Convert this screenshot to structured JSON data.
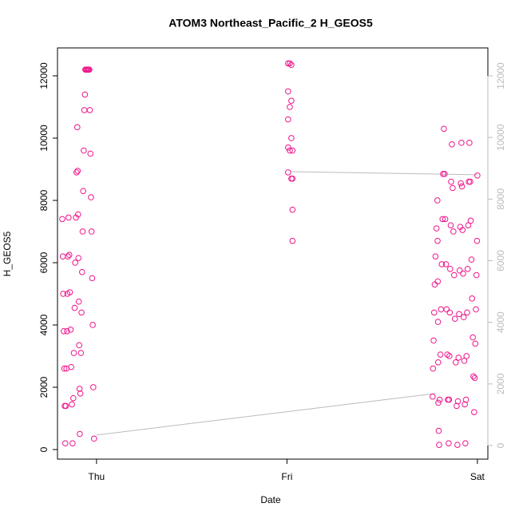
{
  "chart_data": {
    "type": "scatter",
    "title": "ATOM3 Northeast_Pacific_2 H_GEOS5",
    "xlabel": "Date",
    "ylabel": "H_GEOS5",
    "xlim": [
      -0.205,
      2.055
    ],
    "xticks": [
      {
        "value": 0,
        "label": "Thu"
      },
      {
        "value": 1,
        "label": "Fri"
      },
      {
        "value": 2,
        "label": "Sat"
      }
    ],
    "ylim": [
      -308,
      12897
    ],
    "yticks": [
      0,
      2000,
      4000,
      6000,
      8000,
      10000,
      12000
    ],
    "y2lim": [
      -441,
      12908
    ],
    "y2ticks": [
      0,
      2000,
      4000,
      6000,
      8000,
      10000,
      12000
    ],
    "series": [
      {
        "color": "#f0168c",
        "x": [
          -0.18,
          -0.177,
          -0.175,
          -0.172,
          -0.169,
          -0.167,
          -0.164,
          -0.161,
          -0.158,
          -0.155,
          -0.153,
          -0.15,
          -0.147,
          -0.143,
          -0.14,
          -0.136,
          -0.133,
          -0.129,
          -0.126,
          -0.122,
          -0.119,
          -0.115,
          -0.112,
          -0.108,
          -0.105,
          -0.101,
          -0.099,
          -0.097,
          -0.095,
          -0.093,
          -0.091,
          -0.089,
          -0.088,
          -0.085,
          -0.082,
          -0.079,
          -0.076,
          -0.073,
          -0.07,
          -0.067,
          -0.064,
          -0.061,
          -0.059,
          -0.055,
          -0.05,
          -0.046,
          -0.042,
          -0.038,
          -0.035,
          -0.032,
          -0.029,
          -0.026,
          -0.023,
          -0.02,
          -0.017,
          -0.013,
          1.006,
          1.006,
          1.006,
          1.006,
          1.006,
          1.015,
          1.015,
          1.015,
          1.023,
          1.023,
          1.023,
          1.023,
          1.029,
          1.029,
          1.029,
          1.029,
          1.765,
          1.767,
          1.77,
          1.773,
          1.776,
          1.78,
          1.785,
          1.79,
          1.791,
          1.792,
          1.793,
          1.794,
          1.795,
          1.797,
          1.799,
          1.802,
          1.806,
          1.809,
          1.813,
          1.817,
          1.82,
          1.824,
          1.828,
          1.831,
          1.835,
          1.838,
          1.842,
          1.845,
          1.849,
          1.851,
          1.853,
          1.855,
          1.857,
          1.86,
          1.862,
          1.866,
          1.87,
          1.874,
          1.878,
          1.882,
          1.886,
          1.891,
          1.895,
          1.898,
          1.901,
          1.904,
          1.907,
          1.91,
          1.913,
          1.916,
          1.919,
          1.922,
          1.925,
          1.928,
          1.931,
          1.934,
          1.937,
          1.94,
          1.943,
          1.946,
          1.949,
          1.952,
          1.955,
          1.958,
          1.962,
          1.965,
          1.969,
          1.972,
          1.976,
          1.979,
          1.983,
          1.986,
          1.989,
          1.992,
          1.995,
          1.998,
          2.0
        ],
        "values": [
          7400,
          6200,
          5000,
          3800,
          2600,
          1400,
          200,
          1400,
          2600,
          3800,
          5000,
          6200,
          7450,
          6250,
          5050,
          3850,
          2650,
          1450,
          200,
          1650,
          3100,
          4550,
          6000,
          7450,
          8900,
          10350,
          8950,
          7550,
          6150,
          4750,
          3350,
          1950,
          500,
          1800,
          3100,
          4400,
          5700,
          7000,
          8300,
          9600,
          10900,
          11400,
          12200,
          12200,
          12200,
          12200,
          12200,
          12200,
          10900,
          9500,
          8100,
          7000,
          5500,
          4000,
          2000,
          350,
          12400,
          11500,
          10600,
          9700,
          8900,
          12400,
          11000,
          9600,
          12350,
          11200,
          10000,
          8700,
          9600,
          8700,
          7700,
          6700,
          1700,
          2600,
          3500,
          4400,
          5300,
          6200,
          7100,
          8000,
          6700,
          5400,
          4100,
          2800,
          1500,
          600,
          150,
          1600,
          3050,
          4500,
          5950,
          7400,
          8850,
          10300,
          8850,
          7400,
          5950,
          4500,
          3050,
          1600,
          200,
          1600,
          3000,
          4400,
          5800,
          7200,
          8600,
          9800,
          8400,
          7000,
          5600,
          4200,
          2800,
          1400,
          150,
          1550,
          2950,
          4350,
          5750,
          7150,
          8550,
          9850,
          8450,
          7050,
          5650,
          4250,
          2850,
          1450,
          200,
          1600,
          3000,
          4400,
          5800,
          7200,
          8600,
          9850,
          8600,
          7350,
          6100,
          4850,
          3600,
          2350,
          1200,
          2300,
          3400,
          4500,
          5600,
          6700,
          8800
        ]
      },
      {
        "type": "line",
        "axis": "y2",
        "color": "#bbbbbb",
        "x": [
          0.0,
          1.78,
          null,
          1.02,
          2.0
        ],
        "values": [
          340,
          1690,
          null,
          8890,
          8790
        ]
      }
    ]
  }
}
